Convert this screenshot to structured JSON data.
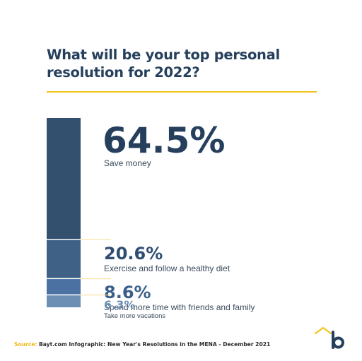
{
  "title": {
    "line1": "What will be your top personal",
    "line2": "resolution for 2022?"
  },
  "chart_data": {
    "type": "bar",
    "title": "What will be your top personal resolution for 2022?",
    "categories": [
      "Save money",
      "Exercise and follow a healthy diet",
      "Spend more time with friends and family",
      "Take more vacations"
    ],
    "values": [
      64.5,
      20.6,
      8.6,
      6.3
    ],
    "value_labels": [
      "64.5%",
      "20.6%",
      "8.6%",
      "6.3%"
    ],
    "unit": "%",
    "orientation": "stacked-vertical",
    "bar_colors": [
      "#33506e",
      "#3e6185",
      "#4a71a2",
      "#6d8fb3"
    ],
    "accent": "#f2c31c"
  },
  "source": {
    "label": "Source:",
    "text": "Bayt.com Infographic: New Year's Resolutions in the MENA - December 2021"
  },
  "logo": {
    "icon": "bayt-logo-icon"
  },
  "colors": {
    "title": "#253f5c",
    "accent": "#f2c31c",
    "logo_mark": "#253f5c"
  }
}
